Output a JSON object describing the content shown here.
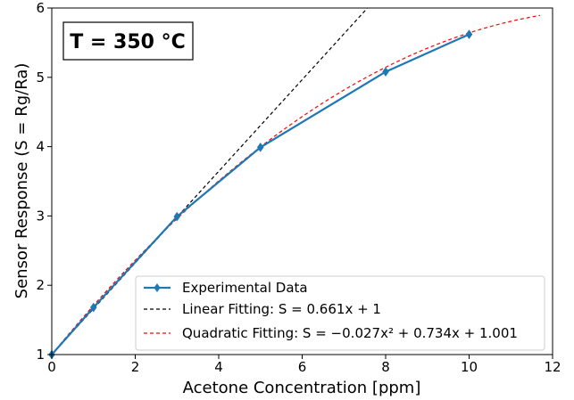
{
  "chart_data": {
    "type": "line",
    "xlabel": "Acetone Concentration [ppm]",
    "ylabel": "Sensor Response (S = Rg/Ra)",
    "xlim": [
      0,
      12
    ],
    "ylim": [
      1,
      6
    ],
    "xticks": [
      "0",
      "2",
      "4",
      "6",
      "8",
      "10",
      "12"
    ],
    "yticks": [
      "1",
      "2",
      "3",
      "4",
      "5",
      "6"
    ],
    "grid": false,
    "legend_position": "lower-right",
    "annotation": "T = 350 °C",
    "series": [
      {
        "name": "Experimental Data",
        "style": "solid-diamond",
        "color": "#1f77b4",
        "x": [
          0,
          1,
          3,
          5,
          8,
          10
        ],
        "y": [
          1.0,
          1.68,
          2.99,
          3.99,
          5.08,
          5.62
        ]
      },
      {
        "name": "Linear Fitting: S = 0.661x + 1",
        "style": "dashed",
        "color": "#000000",
        "slope": 0.661,
        "intercept": 1
      },
      {
        "name": "Quadratic Fitting: S = −0.027x² + 0.734x + 1.001",
        "style": "dashed",
        "color": "#ff0000",
        "a": -0.027,
        "b": 0.734,
        "c": 1.001,
        "x_max": 11.7
      }
    ]
  }
}
